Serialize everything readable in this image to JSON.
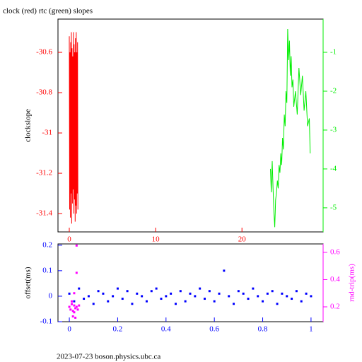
{
  "chart_data": [
    {
      "type": "line",
      "title": "clock (red) rtc (green) slopes",
      "y_label": "clockslope",
      "xlim": [
        -1.31,
        29.4
      ],
      "xticks": [
        0,
        10,
        20
      ],
      "ylim": [
        -31.491,
        -30.435
      ],
      "yticks": [
        -30.6,
        -30.8,
        -31,
        -31.2,
        -31.4
      ],
      "y2lim": [
        -5.62,
        -0.145
      ],
      "y2ticks": [
        -1,
        -2,
        -3,
        -4,
        -5
      ],
      "series": [
        {
          "name": "clock",
          "color": "#ff0000",
          "axis": "y",
          "x": [
            0,
            0.04,
            0.08,
            0.12,
            0.16,
            0.2,
            0.24,
            0.28,
            0.32,
            0.36,
            0.4,
            0.44,
            0.48,
            0.52,
            0.56,
            0.6,
            0.64,
            0.68,
            0.72,
            0.76,
            0.8,
            0.84,
            0.88,
            0.92,
            0.96,
            1.0
          ],
          "values": [
            -30.52,
            -31.38,
            -30.6,
            -31.42,
            -30.55,
            -31.3,
            -30.5,
            -31.45,
            -30.58,
            -31.35,
            -30.62,
            -31.28,
            -30.5,
            -31.4,
            -30.56,
            -31.33,
            -30.6,
            -31.44,
            -30.53,
            -31.36,
            -30.5,
            -31.4,
            -30.6,
            -31.3,
            -30.55,
            -31.38
          ]
        },
        {
          "name": "rtc",
          "color": "#00ee00",
          "axis": "y2",
          "x": [
            23.3,
            23.4,
            23.5,
            23.6,
            23.7,
            23.8,
            23.9,
            24.0,
            24.1,
            24.2,
            24.3,
            24.4,
            24.5,
            24.6,
            24.7,
            24.8,
            24.9,
            25.0,
            25.1,
            25.2,
            25.3,
            25.4,
            25.5,
            25.6,
            25.7,
            25.8,
            25.9,
            26.0,
            26.2,
            26.4,
            26.6,
            26.8,
            27.0,
            27.2,
            27.4,
            27.6,
            27.8,
            27.9
          ],
          "values": [
            -4.0,
            -4.6,
            -3.8,
            -4.5,
            -5.1,
            -5.5,
            -4.8,
            -4.6,
            -4.3,
            -4.5,
            -3.9,
            -4.1,
            -3.6,
            -3.9,
            -3.2,
            -3.5,
            -2.6,
            -2.9,
            -2.0,
            -2.3,
            -0.4,
            -1.2,
            -0.7,
            -1.6,
            -1.1,
            -1.9,
            -1.7,
            -2.4,
            -2.0,
            -2.6,
            -1.4,
            -2.1,
            -1.6,
            -2.5,
            -2.0,
            -2.9,
            -2.7,
            -3.6
          ]
        }
      ]
    },
    {
      "type": "scatter",
      "y_label": "offset(ms)",
      "y2_label": "rnd-trip(ms)",
      "xlim": [
        -0.047,
        1.05
      ],
      "xticks": [
        0,
        0.2,
        0.4,
        0.6,
        0.8,
        1
      ],
      "ylim": [
        -0.1,
        0.205
      ],
      "yticks": [
        0.2,
        0.1,
        0,
        -0.1
      ],
      "y2lim": [
        0.091,
        0.662
      ],
      "y2ticks": [
        0.6,
        0.4,
        0.2
      ],
      "series": [
        {
          "name": "offset",
          "color": "#0000ff",
          "axis": "y",
          "x": [
            0,
            0.02,
            0.04,
            0.06,
            0.08,
            0.1,
            0.12,
            0.14,
            0.16,
            0.18,
            0.2,
            0.22,
            0.24,
            0.26,
            0.28,
            0.3,
            0.32,
            0.34,
            0.36,
            0.38,
            0.4,
            0.42,
            0.44,
            0.46,
            0.48,
            0.5,
            0.52,
            0.54,
            0.56,
            0.58,
            0.6,
            0.62,
            0.64,
            0.66,
            0.68,
            0.7,
            0.72,
            0.74,
            0.76,
            0.78,
            0.8,
            0.82,
            0.84,
            0.86,
            0.88,
            0.9,
            0.92,
            0.94,
            0.96,
            0.98,
            1.0
          ],
          "values": [
            0.01,
            -0.02,
            0.03,
            -0.01,
            0.0,
            -0.03,
            0.02,
            0.01,
            -0.02,
            0.0,
            0.03,
            -0.01,
            0.02,
            -0.03,
            0.01,
            0.0,
            -0.02,
            0.02,
            0.03,
            -0.01,
            0.0,
            0.01,
            -0.03,
            0.02,
            -0.02,
            0.01,
            0.0,
            0.03,
            -0.01,
            0.02,
            -0.02,
            0.01,
            0.1,
            0.0,
            -0.03,
            0.02,
            0.01,
            -0.01,
            0.03,
            0.0,
            -0.02,
            0.01,
            0.02,
            -0.03,
            0.01,
            0.0,
            -0.01,
            0.02,
            -0.02,
            0.01,
            0.0
          ]
        },
        {
          "name": "rnd-trip",
          "color": "#ff00ff",
          "axis": "y2",
          "x": [
            0,
            0.005,
            0.01,
            0.015,
            0.02,
            0.025,
            0.03,
            0.035,
            0.04,
            0.01,
            0.02,
            0.03,
            0.015,
            0.025,
            0.03,
            0.02
          ],
          "values": [
            0.2,
            0.18,
            0.22,
            0.17,
            0.21,
            0.19,
            0.2,
            0.18,
            0.21,
            0.24,
            0.16,
            0.45,
            0.13,
            0.12,
            0.65,
            0.3
          ]
        }
      ]
    }
  ],
  "footer": "2023-07-23 boson.physics.ubc.ca"
}
